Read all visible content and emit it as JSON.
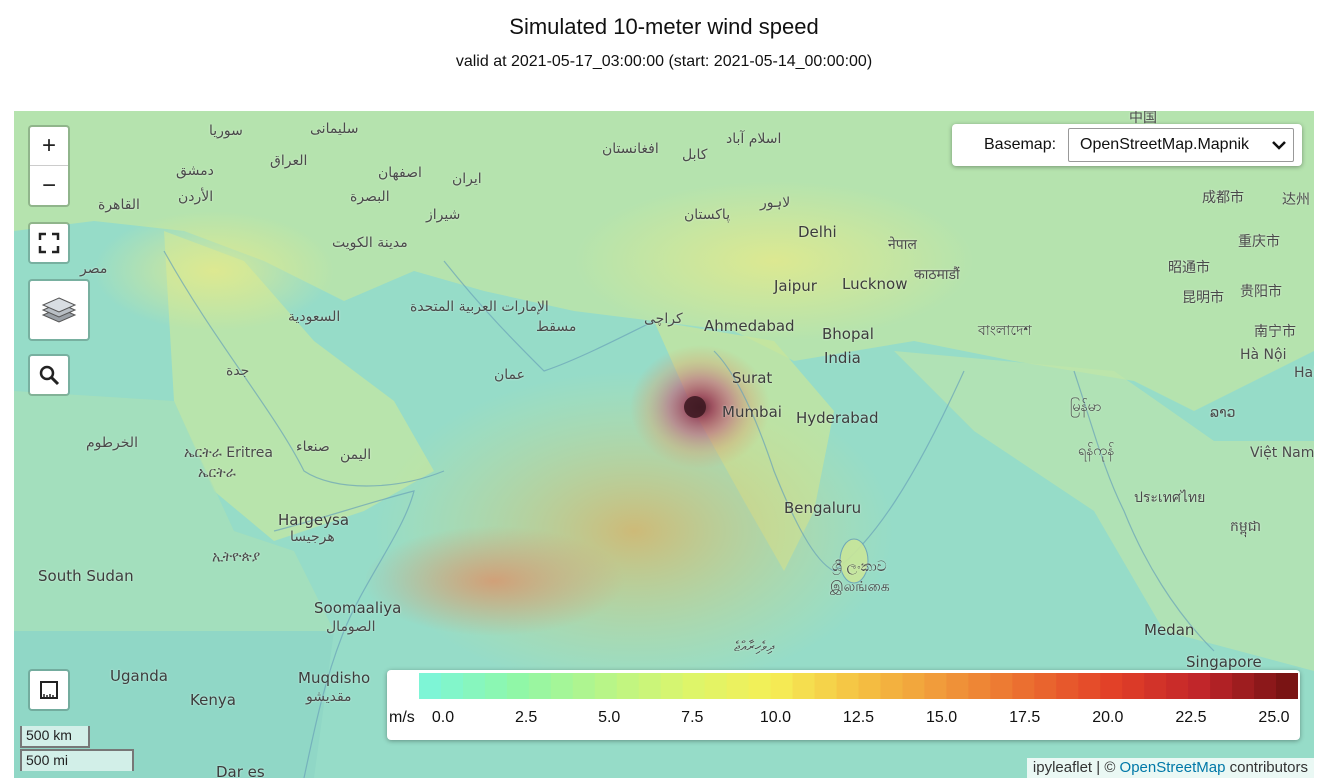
{
  "title": "Simulated 10-meter wind speed",
  "subtitle": "valid at 2021-05-17_03:00:00 (start: 2021-05-14_00:00:00)",
  "map": {
    "zoom_in_label": "+",
    "zoom_out_label": "−",
    "basemap_label": "Basemap:",
    "basemap_value": "OpenStreetMap.Mapnik",
    "scale_km": "500 km",
    "scale_mi": "500 mi",
    "attribution_prefix": "ipyleaflet | © ",
    "attribution_link": "OpenStreetMap",
    "attribution_suffix": " contributors",
    "places": [
      {
        "name": "中国",
        "cls": ""
      },
      {
        "name": "سوريا",
        "cls": ""
      },
      {
        "name": "سليمانى",
        "cls": ""
      },
      {
        "name": "افغانستان",
        "cls": ""
      },
      {
        "name": "کابل",
        "cls": ""
      },
      {
        "name": "اسلام آباد",
        "cls": ""
      },
      {
        "name": "دمشق",
        "cls": ""
      },
      {
        "name": "العراق",
        "cls": ""
      },
      {
        "name": "اصفهان",
        "cls": ""
      },
      {
        "name": "ایران",
        "cls": ""
      },
      {
        "name": "القاهرة",
        "cls": ""
      },
      {
        "name": "الأردن",
        "cls": ""
      },
      {
        "name": "البصرة",
        "cls": ""
      },
      {
        "name": "شیراز",
        "cls": ""
      },
      {
        "name": "پاکستان",
        "cls": ""
      },
      {
        "name": "لاہور",
        "cls": ""
      },
      {
        "name": "成都市",
        "cls": ""
      },
      {
        "name": "达州",
        "cls": ""
      },
      {
        "name": "مدينة الكويت",
        "cls": ""
      },
      {
        "name": "Delhi",
        "cls": "big"
      },
      {
        "name": "नेपाल",
        "cls": ""
      },
      {
        "name": "重庆市",
        "cls": ""
      },
      {
        "name": "مصر",
        "cls": ""
      },
      {
        "name": "काठमाडौं",
        "cls": ""
      },
      {
        "name": "昭通市",
        "cls": ""
      },
      {
        "name": "Jaipur",
        "cls": "big"
      },
      {
        "name": "Lucknow",
        "cls": "big"
      },
      {
        "name": "昆明市",
        "cls": ""
      },
      {
        "name": "贵阳市",
        "cls": ""
      },
      {
        "name": "الإمارات العربية المتحدة",
        "cls": ""
      },
      {
        "name": "السعودية",
        "cls": ""
      },
      {
        "name": "مسقط",
        "cls": ""
      },
      {
        "name": "کراچی",
        "cls": ""
      },
      {
        "name": "Ahmedabad",
        "cls": "big"
      },
      {
        "name": "Bhopal",
        "cls": "big"
      },
      {
        "name": "বাংলাদেশ",
        "cls": ""
      },
      {
        "name": "南宁市",
        "cls": ""
      },
      {
        "name": "India",
        "cls": "big"
      },
      {
        "name": "Hà Nội",
        "cls": ""
      },
      {
        "name": "جدة",
        "cls": ""
      },
      {
        "name": "عمان",
        "cls": ""
      },
      {
        "name": "Surat",
        "cls": "big"
      },
      {
        "name": "Hai",
        "cls": ""
      },
      {
        "name": "Mumbai",
        "cls": "big"
      },
      {
        "name": "Hyderabad",
        "cls": "big"
      },
      {
        "name": "မြန်မာ",
        "cls": ""
      },
      {
        "name": "ລາວ",
        "cls": ""
      },
      {
        "name": "الخرطوم",
        "cls": ""
      },
      {
        "name": "ኤርትራ Eritrea",
        "cls": ""
      },
      {
        "name": "ኤርትራ",
        "cls": ""
      },
      {
        "name": "صنعاء",
        "cls": ""
      },
      {
        "name": "اليمن",
        "cls": ""
      },
      {
        "name": "ရန်ကုန်",
        "cls": ""
      },
      {
        "name": "Việt Nam",
        "cls": ""
      },
      {
        "name": "ประเทศไทย",
        "cls": ""
      },
      {
        "name": "Bengaluru",
        "cls": "big"
      },
      {
        "name": "Hargeysa",
        "cls": "big"
      },
      {
        "name": "هرجيسا",
        "cls": ""
      },
      {
        "name": "កម្ពុជា",
        "cls": ""
      },
      {
        "name": "ኢትዮጵያ",
        "cls": ""
      },
      {
        "name": "ශ්‍රී ලංකාව",
        "cls": ""
      },
      {
        "name": "இலங்கை",
        "cls": ""
      },
      {
        "name": "South Sudan",
        "cls": "big"
      },
      {
        "name": "Soomaaliya",
        "cls": "big"
      },
      {
        "name": "الصومال",
        "cls": ""
      },
      {
        "name": "Medan",
        "cls": "big"
      },
      {
        "name": "ދިވެހިރާއްޖެ",
        "cls": ""
      },
      {
        "name": "Singapore",
        "cls": "big"
      },
      {
        "name": "Uganda",
        "cls": "big"
      },
      {
        "name": "Muqdisho",
        "cls": "big"
      },
      {
        "name": "مقديشو",
        "cls": ""
      },
      {
        "name": "Kenya",
        "cls": "big"
      },
      {
        "name": "Dar es",
        "cls": "big"
      }
    ]
  },
  "colorbar": {
    "unit": "m/s",
    "min": 0.0,
    "max": 25.0,
    "ticks": [
      "0.0",
      "2.5",
      "5.0",
      "7.5",
      "10.0",
      "12.5",
      "15.0",
      "17.5",
      "20.0",
      "22.5",
      "25.0"
    ],
    "colors": [
      "#7ef5d6",
      "#8ff7a8",
      "#b6f58a",
      "#dcf56b",
      "#f5ef56",
      "#f5c142",
      "#f0983a",
      "#eb6c2f",
      "#e23f28",
      "#c0252a",
      "#7a1414"
    ]
  }
}
